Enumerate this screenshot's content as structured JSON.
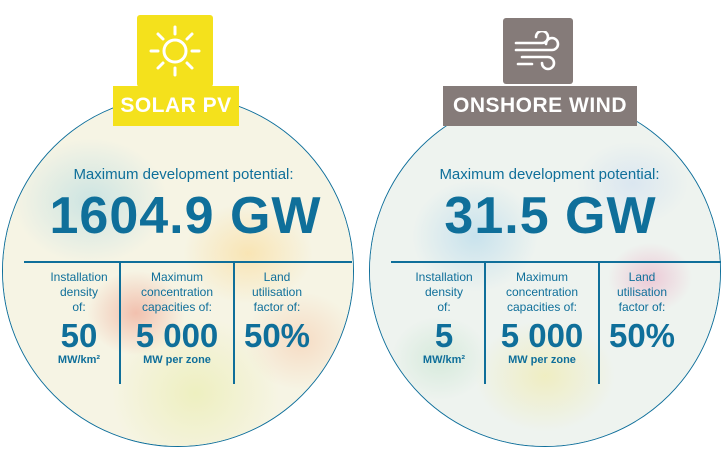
{
  "panels": [
    {
      "icon": "sun-icon",
      "accent": "#f4e11c",
      "badge": "SOLAR PV",
      "max_label": "Maximum development potential:",
      "max_value": "1604.9 GW",
      "columns": [
        {
          "label_lines": [
            "Installation",
            "density",
            "of:"
          ],
          "value": "50",
          "unit": "MW/km²"
        },
        {
          "label_lines": [
            "Maximum",
            "concentration",
            "capacities of:"
          ],
          "value": "5 000",
          "unit": "MW per zone"
        },
        {
          "label_lines": [
            "Land",
            "utilisation",
            "factor of:"
          ],
          "value": "50%",
          "unit": ""
        }
      ]
    },
    {
      "icon": "wind-icon",
      "accent": "#857b79",
      "badge": "ONSHORE WIND",
      "max_label": "Maximum development potential:",
      "max_value": "31.5 GW",
      "columns": [
        {
          "label_lines": [
            "Installation",
            "density",
            "of:"
          ],
          "value": "5",
          "unit": "MW/km²"
        },
        {
          "label_lines": [
            "Maximum",
            "concentration",
            "capacities of:"
          ],
          "value": "5 000",
          "unit": "MW per zone"
        },
        {
          "label_lines": [
            "Land",
            "utilisation",
            "factor of:"
          ],
          "value": "50%",
          "unit": ""
        }
      ]
    }
  ],
  "colors": {
    "text_blue": "#0f6f9a"
  }
}
